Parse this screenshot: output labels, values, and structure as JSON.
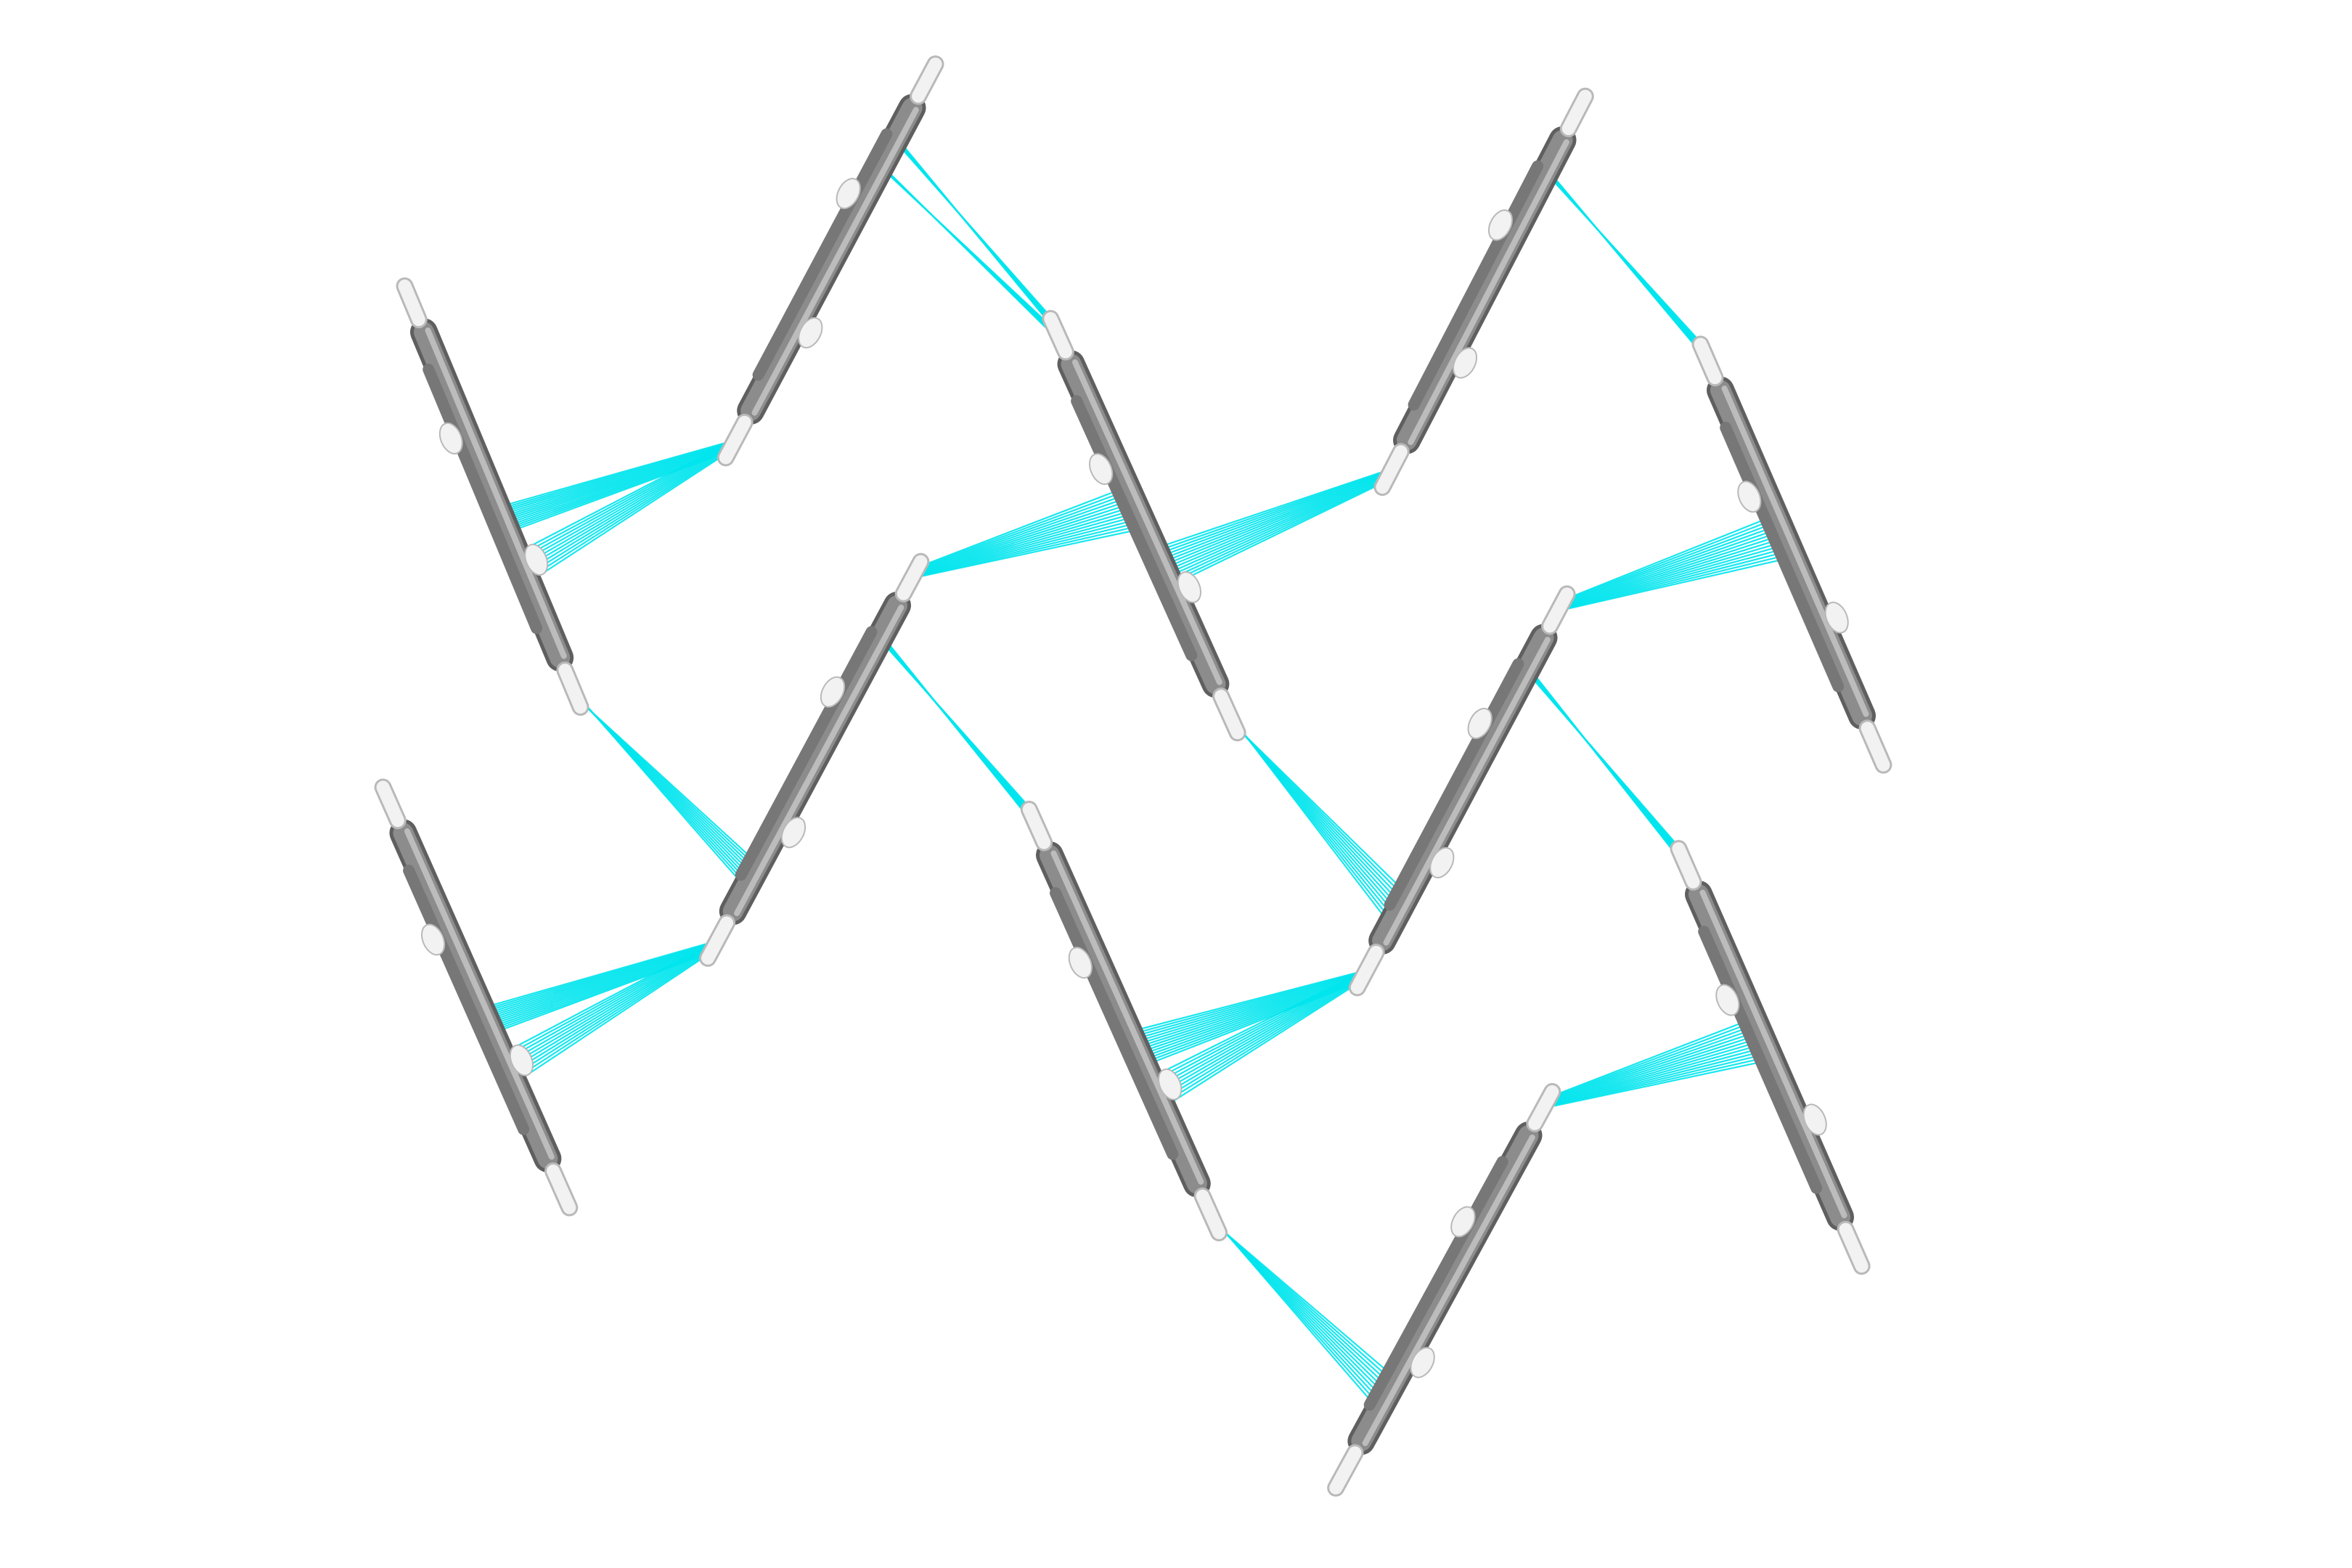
{
  "diagram": {
    "type": "molecular-crystal-packing",
    "style": "capped-sticks",
    "background_color": "#ffffff",
    "colors": {
      "carbon": "#8c8c8c",
      "carbon_dark": "#5f5f5f",
      "carbon_light": "#c8c8c8",
      "hydrogen": "#f2f2f2",
      "hydrogen_edge": "#b9b9b9",
      "contact": "#00e5ee"
    },
    "molecules": [
      {
        "id": "m1",
        "orientation": "steep"
      },
      {
        "id": "m2",
        "orientation": "shallow"
      },
      {
        "id": "m3",
        "orientation": "steep"
      },
      {
        "id": "m4",
        "orientation": "shallow"
      },
      {
        "id": "m5",
        "orientation": "steep"
      },
      {
        "id": "m6",
        "orientation": "steep"
      },
      {
        "id": "m7",
        "orientation": "shallow"
      },
      {
        "id": "m8",
        "orientation": "steep"
      },
      {
        "id": "m9",
        "orientation": "shallow"
      },
      {
        "id": "m10",
        "orientation": "steep"
      },
      {
        "id": "m11",
        "orientation": "shallow"
      }
    ]
  }
}
